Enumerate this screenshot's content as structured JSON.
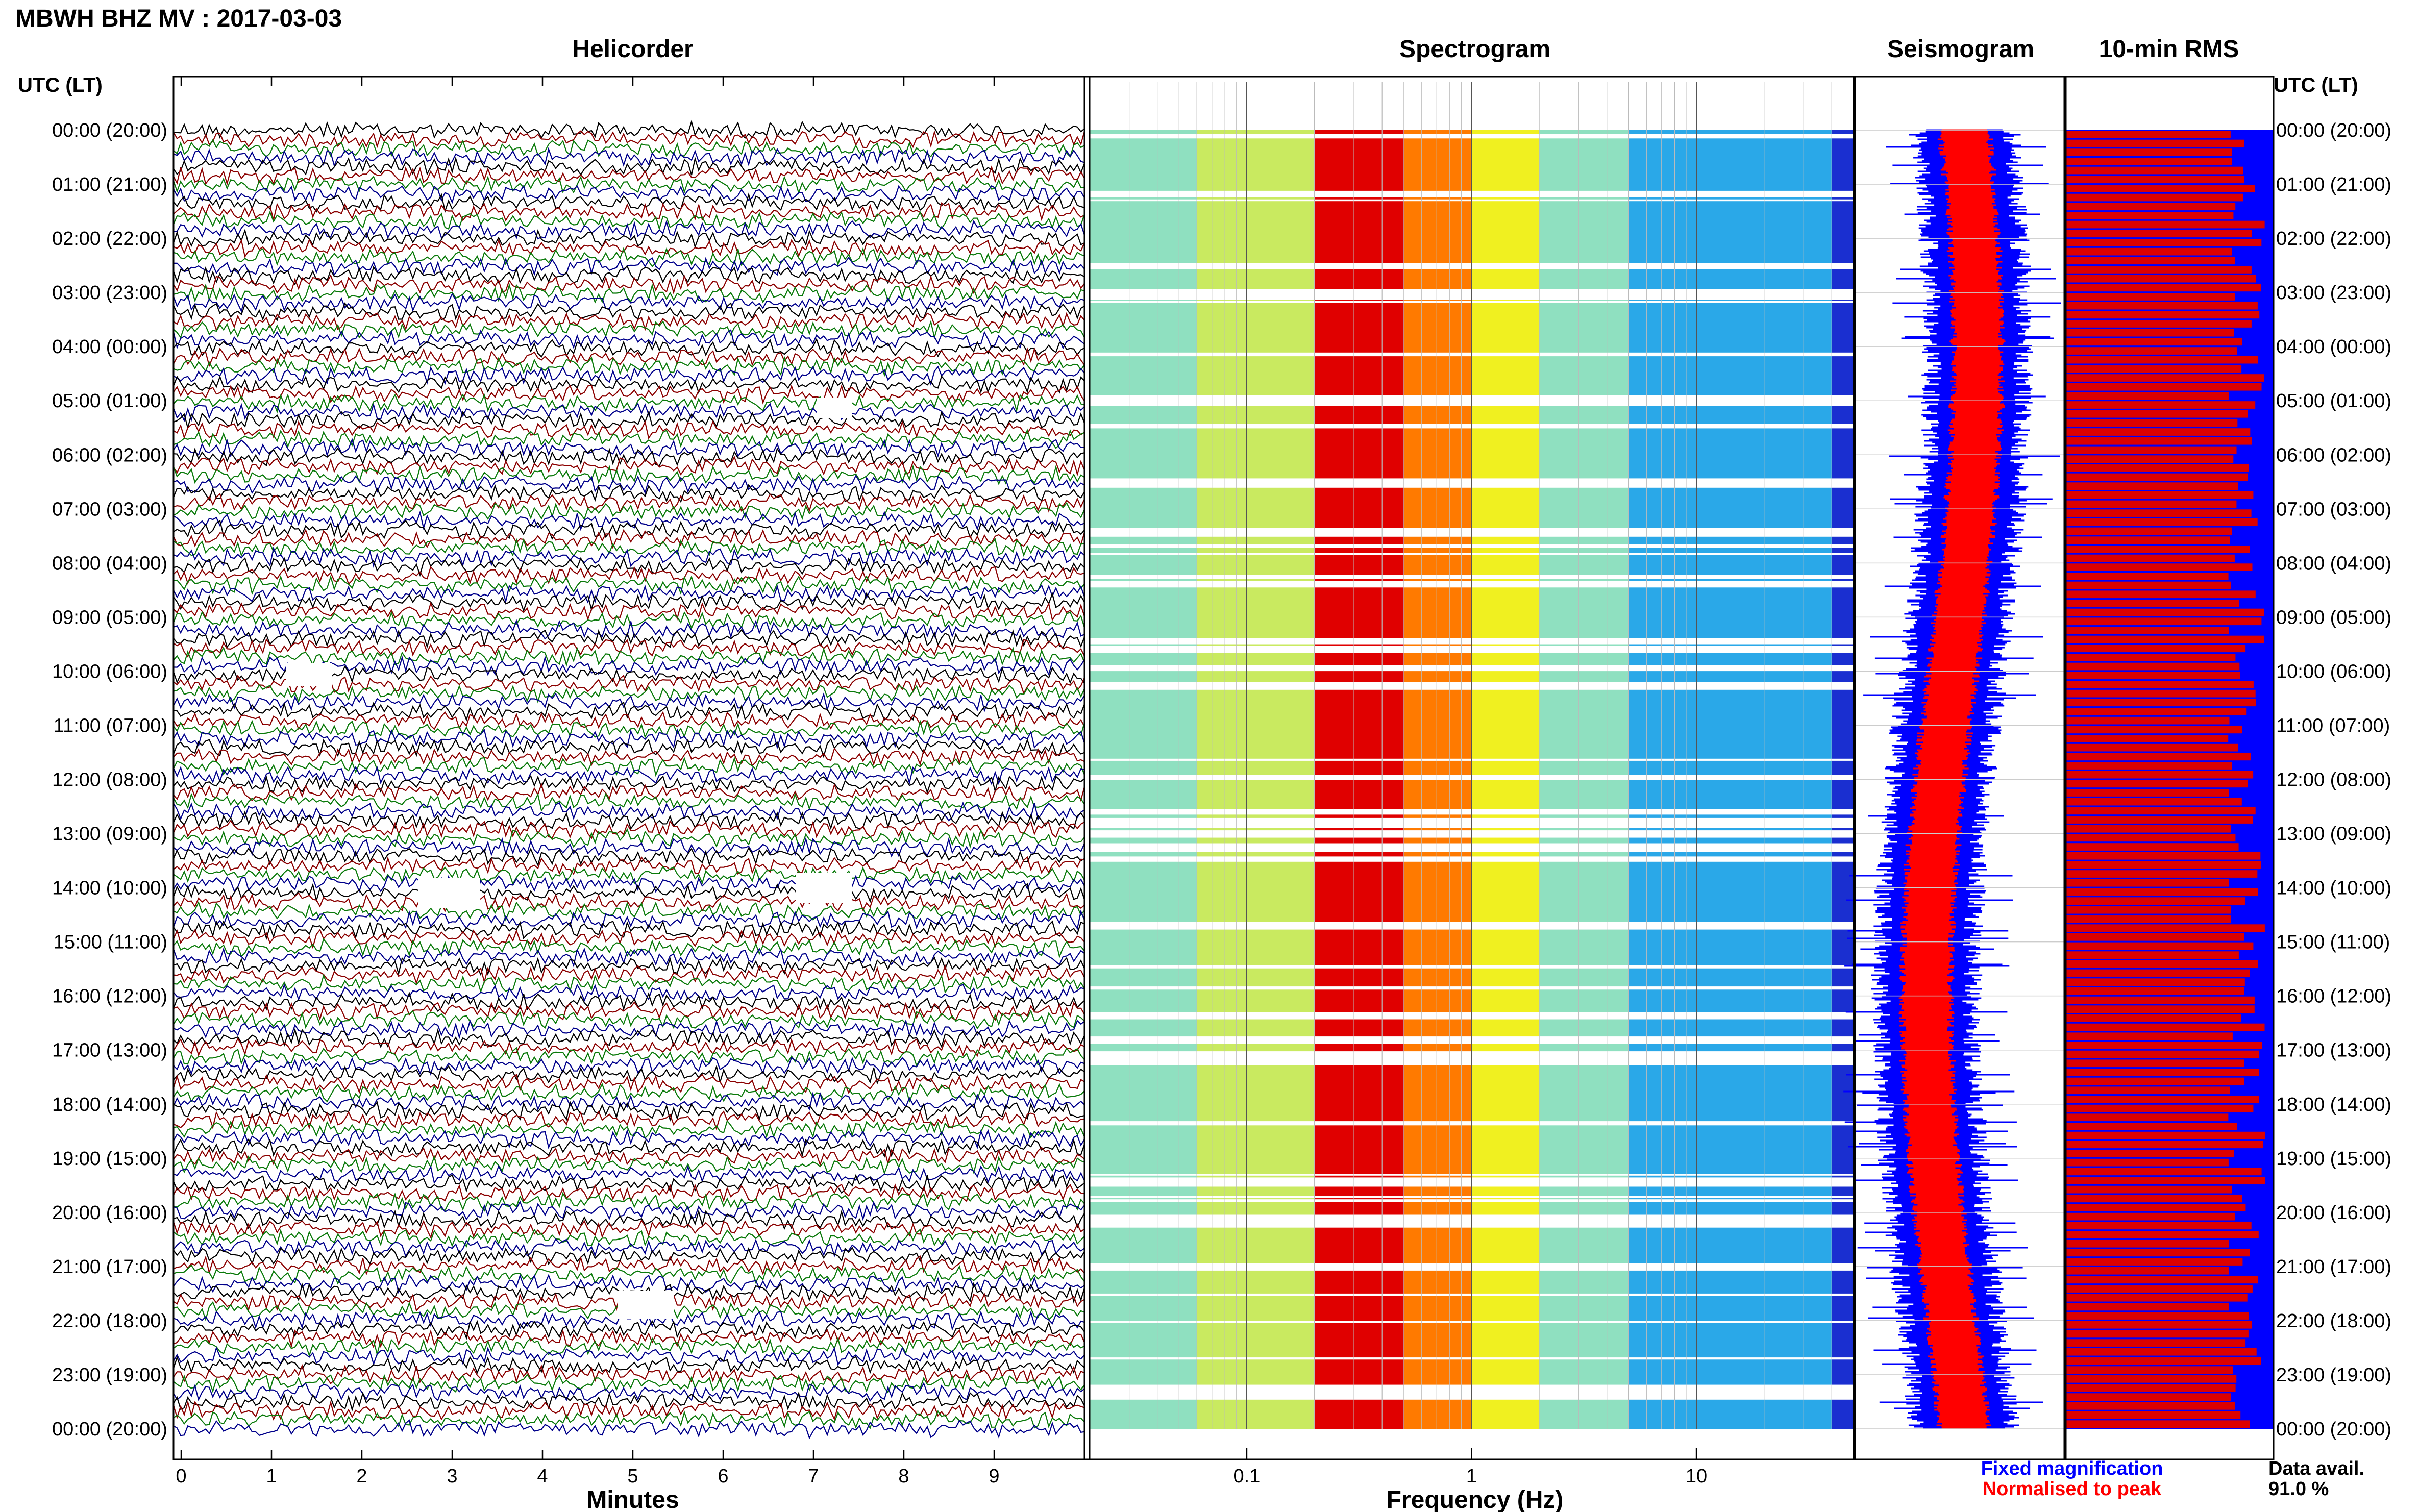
{
  "figure": {
    "title": "MBWH BHZ MV : 2017-03-03",
    "time_header_left": "UTC (LT)",
    "time_header_right": "UTC (LT)",
    "footer": {
      "fixed_magnification": "Fixed magnification",
      "normalised_to_peak": "Normalised to peak",
      "data_avail_label": "Data avail.",
      "data_avail_value": "91.0 %"
    },
    "colors": {
      "helicorder_traces": [
        "#000000",
        "#8b0000",
        "#0a7a0a",
        "#00008b"
      ],
      "fixed_magnification": "#0000ff",
      "normalised": "#ff0000",
      "rms_background": "#0000ff",
      "rms_bars": "#dd0000",
      "spectrogram_scale": [
        "#1a2fd0",
        "#2aa8e8",
        "#8fe0c0",
        "#f0f020",
        "#ff7a00",
        "#e00000"
      ]
    }
  },
  "chart_data": [
    {
      "type": "line",
      "name": "helicorder",
      "title": "Helicorder",
      "xlabel": "Minutes",
      "ylabel": "UTC (LT)",
      "xlim": [
        0,
        10
      ],
      "x_ticks": [
        "0",
        "1",
        "2",
        "3",
        "4",
        "5",
        "6",
        "7",
        "8",
        "9"
      ],
      "y_tick_labels": [
        "00:00 (20:00)",
        "01:00 (21:00)",
        "02:00 (22:00)",
        "03:00 (23:00)",
        "04:00 (00:00)",
        "05:00 (01:00)",
        "06:00 (02:00)",
        "07:00 (03:00)",
        "08:00 (04:00)",
        "09:00 (05:00)",
        "10:00 (06:00)",
        "11:00 (07:00)",
        "12:00 (08:00)",
        "13:00 (09:00)",
        "14:00 (10:00)",
        "15:00 (11:00)",
        "16:00 (12:00)",
        "17:00 (13:00)",
        "18:00 (14:00)",
        "19:00 (15:00)",
        "20:00 (16:00)",
        "21:00 (17:00)",
        "22:00 (18:00)",
        "23:00 (19:00)",
        "00:00 (20:00)"
      ],
      "trace_count": 144
    },
    {
      "type": "heatmap",
      "name": "spectrogram",
      "title": "Spectrogram",
      "xlabel": "Frequency (Hz)",
      "x_scale": "log",
      "xlim": [
        0.02,
        50
      ],
      "x_ticks": [
        "0.1",
        "1",
        "10"
      ],
      "peak_band_hz": [
        0.2,
        0.5
      ]
    },
    {
      "type": "line",
      "name": "seismogram",
      "title": "Seismogram",
      "series": [
        {
          "name": "Fixed magnification"
        },
        {
          "name": "Normalised to peak"
        }
      ]
    },
    {
      "type": "bar",
      "name": "rms",
      "title": "10-min RMS",
      "orientation": "horizontal",
      "bar_count": 144
    }
  ]
}
